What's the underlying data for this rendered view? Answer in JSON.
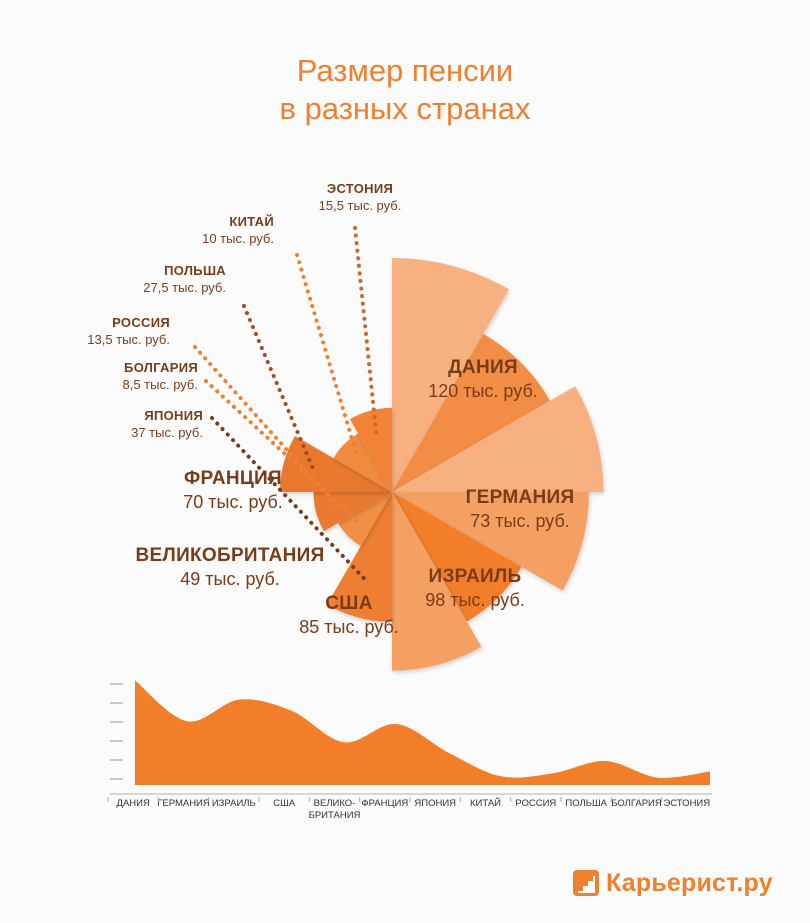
{
  "title": {
    "line1": "Размер пенсии",
    "line2": "в разных странах"
  },
  "chart_data": {
    "type": "pie",
    "title": "Размер пенсии в разных странах",
    "unit": "тыс. руб.",
    "slices": [
      {
        "name": "ДАНИЯ",
        "value": 120,
        "value_label": "120 тыс. руб.",
        "color": "#f7b080"
      },
      {
        "name": "ГЕРМАНИЯ",
        "value": 73,
        "value_label": "73 тыс. руб.",
        "color": "#f28d45"
      },
      {
        "name": "ИЗРАИЛЬ",
        "value": 98,
        "value_label": "98 тыс. руб.",
        "color": "#f7b080"
      },
      {
        "name": "США",
        "value": 85,
        "value_label": "85 тыс. руб.",
        "color": "#f5a064"
      },
      {
        "name": "ВЕЛИКОБРИТАНИЯ",
        "value": 49,
        "value_label": "49 тыс. руб.",
        "color": "#f27e2a"
      },
      {
        "name": "ФРАНЦИЯ",
        "value": 70,
        "value_label": "70 тыс. руб.",
        "color": "#f5a064"
      },
      {
        "name": "ЯПОНИЯ",
        "value": 37,
        "value_label": "37 тыс. руб.",
        "color": "#ee7f33"
      },
      {
        "name": "БОЛГАРИЯ",
        "value": 8.5,
        "value_label": "8,5 тыс. руб.",
        "color": "#f09045"
      },
      {
        "name": "РОССИЯ",
        "value": 13.5,
        "value_label": "13,5 тыс. руб.",
        "color": "#ea7a30"
      },
      {
        "name": "ПОЛЬША",
        "value": 27.5,
        "value_label": "27,5 тыс. руб.",
        "color": "#e8782e"
      },
      {
        "name": "КИТАЙ",
        "value": 10,
        "value_label": "10 тыс. руб.",
        "color": "#f08a3e"
      },
      {
        "name": "ЭСТОНИЯ",
        "value": 15.5,
        "value_label": "15,5 тыс. руб.",
        "color": "#f28235"
      }
    ],
    "area_chart": {
      "type": "area",
      "categories": [
        "ДАНИЯ",
        "ГЕРМАНИЯ",
        "ИЗРАИЛЬ",
        "США",
        "ВЕЛИКО-\nБРИТАНИЯ",
        "ФРАНЦИЯ",
        "ЯПОНИЯ",
        "КИТАЙ",
        "РОССИЯ",
        "ПОЛЬША",
        "БОЛГАРИЯ",
        "ЭСТОНИЯ"
      ],
      "values": [
        120,
        73,
        98,
        85,
        49,
        70,
        37,
        10,
        13.5,
        27.5,
        8.5,
        15.5
      ],
      "ylim": [
        0,
        125
      ],
      "color": "#f27e2a"
    }
  },
  "logo": {
    "text": "Карьерист.ру"
  }
}
